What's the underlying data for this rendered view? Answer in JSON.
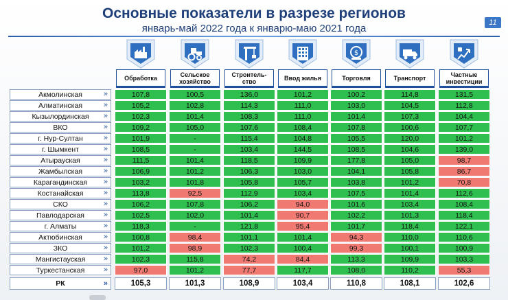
{
  "title": "Основные показатели в разрезе регионов",
  "subtitle": "январь-май 2022 года к январю-маю 2021 года",
  "page_number": "11",
  "colors": {
    "green": "#2fbf4f",
    "red": "#f07a72",
    "accent": "#1f4e9a"
  },
  "columns": [
    {
      "label": "Обработка",
      "icon": "factory-icon"
    },
    {
      "label": "Сельское хозяйство",
      "icon": "tractor-icon"
    },
    {
      "label": "Строитель-ство",
      "icon": "crane-icon"
    },
    {
      "label": "Ввод жилья",
      "icon": "building-icon"
    },
    {
      "label": "Торговля",
      "icon": "trade-icon"
    },
    {
      "label": "Транспорт",
      "icon": "truck-icon"
    },
    {
      "label": "Частные инвестиции",
      "icon": "investment-icon"
    }
  ],
  "rows": [
    {
      "region": "Акмолинская",
      "values": [
        "107,8",
        "100,5",
        "136,0",
        "101,2",
        "100,2",
        "114,8",
        "131,5"
      ],
      "status": [
        "g",
        "g",
        "g",
        "g",
        "g",
        "g",
        "g"
      ]
    },
    {
      "region": "Алматинская",
      "values": [
        "105,2",
        "102,8",
        "114,3",
        "111,0",
        "103,0",
        "104,5",
        "112,8"
      ],
      "status": [
        "g",
        "g",
        "g",
        "g",
        "g",
        "g",
        "g"
      ]
    },
    {
      "region": "Кызылординская",
      "values": [
        "102,3",
        "101,4",
        "108,3",
        "111,0",
        "101,4",
        "107,3",
        "104,4"
      ],
      "status": [
        "g",
        "g",
        "g",
        "g",
        "g",
        "g",
        "g"
      ]
    },
    {
      "region": "ВКО",
      "values": [
        "109,2",
        "105,0",
        "107,6",
        "108,4",
        "107,8",
        "100,6",
        "107,7"
      ],
      "status": [
        "g",
        "g",
        "g",
        "g",
        "g",
        "g",
        "g"
      ]
    },
    {
      "region": "г. Нур-Султан",
      "values": [
        "101,9",
        "-",
        "115,4",
        "104,8",
        "105,5",
        "120,0",
        "101,2"
      ],
      "status": [
        "g",
        "g",
        "g",
        "g",
        "g",
        "g",
        "g"
      ]
    },
    {
      "region": "г. Шымкент",
      "values": [
        "108,5",
        "-",
        "103,4",
        "144,5",
        "108,5",
        "104,6",
        "139,0"
      ],
      "status": [
        "g",
        "g",
        "g",
        "g",
        "g",
        "g",
        "g"
      ]
    },
    {
      "region": "Атырауская",
      "values": [
        "111,5",
        "101,4",
        "118,5",
        "109,9",
        "177,8",
        "105,0",
        "98,7"
      ],
      "status": [
        "g",
        "g",
        "g",
        "g",
        "g",
        "g",
        "r"
      ]
    },
    {
      "region": "Жамбылская",
      "values": [
        "106,9",
        "101,2",
        "106,3",
        "103,0",
        "104,1",
        "105,8",
        "86,7"
      ],
      "status": [
        "g",
        "g",
        "g",
        "g",
        "g",
        "g",
        "r"
      ]
    },
    {
      "region": "Карагандинская",
      "values": [
        "103,2",
        "101,8",
        "105,8",
        "105,7",
        "103,8",
        "101,2",
        "70,8"
      ],
      "status": [
        "g",
        "g",
        "g",
        "g",
        "g",
        "g",
        "r"
      ]
    },
    {
      "region": "Костанайская",
      "values": [
        "113,8",
        "92,5",
        "112,9",
        "103,4",
        "107,5",
        "101,4",
        "112,6"
      ],
      "status": [
        "g",
        "r",
        "g",
        "g",
        "g",
        "g",
        "g"
      ]
    },
    {
      "region": "СКО",
      "values": [
        "106,2",
        "107,8",
        "106,2",
        "94,0",
        "101,6",
        "103,4",
        "108,4"
      ],
      "status": [
        "g",
        "g",
        "g",
        "r",
        "g",
        "g",
        "g"
      ]
    },
    {
      "region": "Павлодарская",
      "values": [
        "102,5",
        "102,0",
        "101,4",
        "90,7",
        "102,2",
        "101,3",
        "118,4"
      ],
      "status": [
        "g",
        "g",
        "g",
        "r",
        "g",
        "g",
        "g"
      ]
    },
    {
      "region": "г. Алматы",
      "values": [
        "118,3",
        "-",
        "121,8",
        "95,4",
        "101,7",
        "118,4",
        "122,1"
      ],
      "status": [
        "g",
        "g",
        "g",
        "r",
        "g",
        "g",
        "g"
      ]
    },
    {
      "region": "Актюбинская",
      "values": [
        "100,8",
        "98,4",
        "101,1",
        "101,4",
        "94,3",
        "110,0",
        "110,6"
      ],
      "status": [
        "g",
        "r",
        "g",
        "g",
        "r",
        "g",
        "g"
      ]
    },
    {
      "region": "ЗКО",
      "values": [
        "101,2",
        "98,9",
        "102,3",
        "100,4",
        "99,3",
        "100,1",
        "100,9"
      ],
      "status": [
        "g",
        "r",
        "g",
        "g",
        "r",
        "g",
        "g"
      ]
    },
    {
      "region": "Мангистауская",
      "values": [
        "102,3",
        "115,8",
        "74,2",
        "84,4",
        "113,3",
        "109,9",
        "103,3"
      ],
      "status": [
        "g",
        "g",
        "r",
        "r",
        "g",
        "g",
        "g"
      ]
    },
    {
      "region": "Туркестанская",
      "values": [
        "97,0",
        "101,2",
        "77,7",
        "117,7",
        "108,0",
        "110,2",
        "55,3"
      ],
      "status": [
        "r",
        "g",
        "r",
        "g",
        "g",
        "g",
        "r"
      ]
    }
  ],
  "total": {
    "region": "РК",
    "values": [
      "105,3",
      "101,3",
      "108,9",
      "103,4",
      "110,8",
      "108,1",
      "102,6"
    ]
  }
}
